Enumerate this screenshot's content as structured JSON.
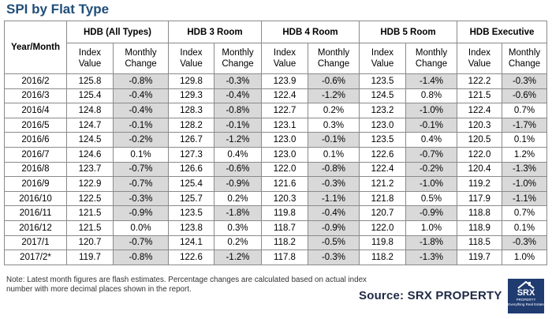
{
  "title": "SPI by Flat Type",
  "header": {
    "first_col": "Year/Month",
    "groups": [
      "HDB (All Types)",
      "HDB 3 Room",
      "HDB 4 Room",
      "HDB 5 Room",
      "HDB Executive"
    ],
    "sub_index": "Index Value",
    "sub_change": "Monthly Change"
  },
  "rows": [
    {
      "month": "2016/2",
      "cells": [
        "125.8",
        "-0.8%",
        "129.8",
        "-0.3%",
        "123.9",
        "-0.6%",
        "123.5",
        "-1.4%",
        "122.2",
        "-0.3%"
      ]
    },
    {
      "month": "2016/3",
      "cells": [
        "125.4",
        "-0.4%",
        "129.3",
        "-0.4%",
        "122.4",
        "-1.2%",
        "124.5",
        "0.8%",
        "121.5",
        "-0.6%"
      ]
    },
    {
      "month": "2016/4",
      "cells": [
        "124.8",
        "-0.4%",
        "128.3",
        "-0.8%",
        "122.7",
        "0.2%",
        "123.2",
        "-1.0%",
        "122.4",
        "0.7%"
      ]
    },
    {
      "month": "2016/5",
      "cells": [
        "124.7",
        "-0.1%",
        "128.2",
        "-0.1%",
        "123.1",
        "0.3%",
        "123.0",
        "-0.1%",
        "120.3",
        "-1.7%"
      ]
    },
    {
      "month": "2016/6",
      "cells": [
        "124.5",
        "-0.2%",
        "126.7",
        "-1.2%",
        "123.0",
        "-0.1%",
        "123.5",
        "0.4%",
        "120.5",
        "0.1%"
      ]
    },
    {
      "month": "2016/7",
      "cells": [
        "124.6",
        "0.1%",
        "127.3",
        "0.4%",
        "123.0",
        "0.1%",
        "122.6",
        "-0.7%",
        "122.0",
        "1.2%"
      ]
    },
    {
      "month": "2016/8",
      "cells": [
        "123.7",
        "-0.7%",
        "126.6",
        "-0.6%",
        "122.0",
        "-0.8%",
        "122.4",
        "-0.2%",
        "120.4",
        "-1.3%"
      ]
    },
    {
      "month": "2016/9",
      "cells": [
        "122.9",
        "-0.7%",
        "125.4",
        "-0.9%",
        "121.6",
        "-0.3%",
        "121.2",
        "-1.0%",
        "119.2",
        "-1.0%"
      ]
    },
    {
      "month": "2016/10",
      "cells": [
        "122.5",
        "-0.3%",
        "125.7",
        "0.2%",
        "120.3",
        "-1.1%",
        "121.8",
        "0.5%",
        "117.9",
        "-1.1%"
      ]
    },
    {
      "month": "2016/11",
      "cells": [
        "121.5",
        "-0.9%",
        "123.5",
        "-1.8%",
        "119.8",
        "-0.4%",
        "120.7",
        "-0.9%",
        "118.8",
        "0.7%"
      ]
    },
    {
      "month": "2016/12",
      "cells": [
        "121.5",
        "0.0%",
        "123.8",
        "0.3%",
        "118.7",
        "-0.9%",
        "122.0",
        "1.0%",
        "118.9",
        "0.1%"
      ]
    },
    {
      "month": "2017/1",
      "cells": [
        "120.7",
        "-0.7%",
        "124.1",
        "0.2%",
        "118.2",
        "-0.5%",
        "119.8",
        "-1.8%",
        "118.5",
        "-0.3%"
      ]
    },
    {
      "month": "2017/2*",
      "cells": [
        "119.7",
        "-0.8%",
        "122.6",
        "-1.2%",
        "117.8",
        "-0.3%",
        "118.2",
        "-1.3%",
        "119.7",
        "1.0%"
      ]
    }
  ],
  "note": "Note: Latest month figures are flash estimates. Percentage changes are calculated based on actual index number with more decimal places shown in the report.",
  "source": "Source:  SRX PROPERTY",
  "logo": {
    "brand": "SRX",
    "sub": "PROPERTY",
    "tagline": "Everything Real Estate",
    "color": "#1f3b70"
  },
  "colors": {
    "title": "#1f4e79",
    "negative_shade": "#d9d9d9",
    "border": "#8a8a8a"
  }
}
